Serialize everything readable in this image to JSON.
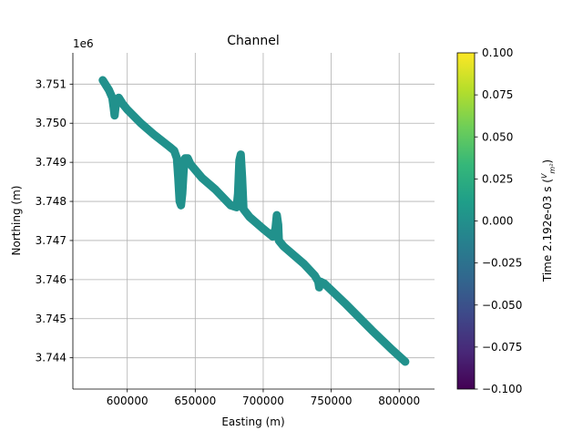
{
  "chart_data": {
    "type": "scatter",
    "title": "Channel",
    "xlabel": "Easting (m)",
    "ylabel": "Northing (m)",
    "y_offset_label": "1e6",
    "xlim": [
      560000,
      826000
    ],
    "ylim": [
      3.7432,
      3.7518
    ],
    "x_ticks": [
      600000,
      650000,
      700000,
      750000,
      800000
    ],
    "x_tick_labels": [
      "600000",
      "650000",
      "700000",
      "750000",
      "800000"
    ],
    "y_ticks": [
      3.744,
      3.745,
      3.746,
      3.747,
      3.748,
      3.749,
      3.75,
      3.751
    ],
    "y_tick_labels": [
      "3.744",
      "3.745",
      "3.746",
      "3.747",
      "3.748",
      "3.749",
      "3.750",
      "3.751"
    ],
    "grid": true,
    "marker_color": "#21918c",
    "flight_path": [
      [
        582000,
        3.7511
      ],
      [
        586500,
        3.75085
      ],
      [
        589000,
        3.75065
      ],
      [
        590000,
        3.7504
      ],
      [
        590700,
        3.7502
      ],
      [
        591300,
        3.7504
      ],
      [
        592200,
        3.7506
      ],
      [
        593800,
        3.75065
      ],
      [
        596500,
        3.7505
      ],
      [
        600000,
        3.75035
      ],
      [
        610000,
        3.75
      ],
      [
        620000,
        3.7497
      ],
      [
        631000,
        3.7494
      ],
      [
        634500,
        3.7493
      ],
      [
        636500,
        3.7491
      ],
      [
        637500,
        3.7486
      ],
      [
        638500,
        3.748
      ],
      [
        639500,
        3.7479
      ],
      [
        640500,
        3.7482
      ],
      [
        641500,
        3.7488
      ],
      [
        642500,
        3.7491
      ],
      [
        644500,
        3.7491
      ],
      [
        646500,
        3.74895
      ],
      [
        655000,
        3.7486
      ],
      [
        665000,
        3.7483
      ],
      [
        676000,
        3.7479
      ],
      [
        680500,
        3.74785
      ],
      [
        681500,
        3.7482
      ],
      [
        682500,
        3.74905
      ],
      [
        683500,
        3.7492
      ],
      [
        684500,
        3.7486
      ],
      [
        685500,
        3.7478
      ],
      [
        690000,
        3.7476
      ],
      [
        700000,
        3.7473
      ],
      [
        707000,
        3.7471
      ],
      [
        709000,
        3.7473
      ],
      [
        710000,
        3.74765
      ],
      [
        711000,
        3.7474
      ],
      [
        711500,
        3.747
      ],
      [
        715000,
        3.74685
      ],
      [
        730000,
        3.7464
      ],
      [
        738000,
        3.7461
      ],
      [
        740500,
        3.74595
      ],
      [
        741200,
        3.7458
      ],
      [
        742000,
        3.74595
      ],
      [
        745000,
        3.7459
      ],
      [
        760000,
        3.7454
      ],
      [
        780000,
        3.7447
      ],
      [
        795000,
        3.7442
      ],
      [
        804500,
        3.7439
      ]
    ]
  },
  "colorbar": {
    "label_prefix": "Time 2.192e-03 s (",
    "label_unit_num": "V",
    "label_unit_den": "m²",
    "label_suffix": ")",
    "colormap": "viridis",
    "vmin": -0.1,
    "vmax": 0.1,
    "ticks": [
      0.1,
      0.075,
      0.05,
      0.025,
      0.0,
      -0.025,
      -0.05,
      -0.075,
      -0.1
    ],
    "tick_labels": [
      "0.100",
      "0.075",
      "0.050",
      "0.025",
      "0.000",
      "−0.025",
      "−0.050",
      "−0.075",
      "−0.100"
    ],
    "gradient_colors": [
      "#440154",
      "#482878",
      "#3e4989",
      "#31688e",
      "#26828e",
      "#1f9e89",
      "#35b779",
      "#6ece58",
      "#b5de2b",
      "#fde725"
    ]
  }
}
